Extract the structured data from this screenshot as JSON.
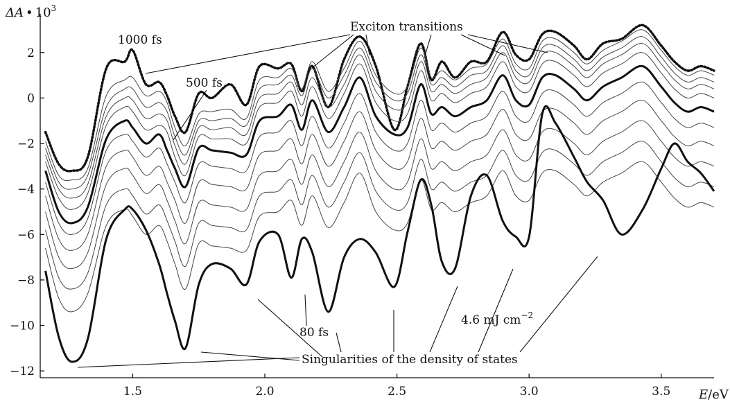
{
  "chart_data": {
    "type": "line",
    "ylabel": "ΔA • 10³",
    "ylabel_parts": {
      "symbol": "ΔA",
      "dot": "•",
      "base": "10",
      "exp": "3"
    },
    "xlabel": "E/eV",
    "xlabel_parts": {
      "symbol": "E",
      "unit": "/eV"
    },
    "xlim": [
      1.15,
      3.7
    ],
    "ylim": [
      -12.3,
      3.7
    ],
    "x_ticks": [
      {
        "value": 1.5,
        "label": "1.5"
      },
      {
        "value": 2.0,
        "label": "2.0"
      },
      {
        "value": 2.5,
        "label": "2.5"
      },
      {
        "value": 3.0,
        "label": "3.0"
      },
      {
        "value": 3.5,
        "label": "3.5"
      }
    ],
    "y_ticks": [
      {
        "value": 2,
        "label": "2"
      },
      {
        "value": 0,
        "label": "0"
      },
      {
        "value": -2,
        "label": "−2"
      },
      {
        "value": -4,
        "label": "−4"
      },
      {
        "value": -6,
        "label": "−6"
      },
      {
        "value": -8,
        "label": "−8"
      },
      {
        "value": -10,
        "label": "−10"
      },
      {
        "value": -12,
        "label": "−12"
      }
    ],
    "base_x": [
      1.17,
      1.22,
      1.27,
      1.33,
      1.4,
      1.47,
      1.5,
      1.55,
      1.6,
      1.63,
      1.66,
      1.7,
      1.75,
      1.8,
      1.87,
      1.93,
      1.98,
      2.05,
      2.1,
      2.14,
      2.18,
      2.24,
      2.3,
      2.36,
      2.42,
      2.49,
      2.54,
      2.59,
      2.63,
      2.67,
      2.72,
      2.78,
      2.84,
      2.9,
      2.95,
      3.0,
      3.05,
      3.1,
      3.17,
      3.22,
      3.28,
      3.35,
      3.43,
      3.5,
      3.55,
      3.6,
      3.65,
      3.7
    ],
    "series": [
      {
        "name": "1000 fs",
        "style": "dotted",
        "values": [
          -1.5,
          -2.9,
          -3.2,
          -2.6,
          1.3,
          1.6,
          2.1,
          0.6,
          0.7,
          0.1,
          -0.8,
          -1.5,
          0.2,
          0.0,
          0.6,
          -0.3,
          1.4,
          1.3,
          1.5,
          0.3,
          1.4,
          -0.4,
          1.7,
          2.7,
          1.4,
          -1.4,
          0.5,
          2.4,
          0.8,
          1.6,
          0.9,
          1.6,
          1.6,
          2.9,
          1.9,
          1.7,
          2.8,
          2.9,
          2.3,
          1.7,
          2.4,
          2.6,
          3.2,
          2.3,
          1.6,
          1.2,
          1.4,
          1.2
        ]
      },
      {
        "name": "",
        "style": "thin",
        "values": [
          -1.9,
          -3.4,
          -3.6,
          -3.1,
          0.1,
          0.8,
          0.9,
          0.1,
          0.3,
          -0.2,
          -1.3,
          -2.1,
          -0.7,
          -0.6,
          -0.5,
          -0.9,
          0.8,
          0.9,
          1.3,
          0.4,
          1.6,
          0.3,
          1.3,
          2.5,
          1.0,
          0.2,
          0.5,
          2.2,
          0.9,
          1.2,
          0.8,
          1.3,
          1.5,
          2.6,
          1.5,
          1.3,
          2.5,
          2.6,
          2.0,
          1.5,
          2.1,
          2.5,
          3.0,
          2.1,
          1.4,
          1.0,
          1.2,
          1.0
        ]
      },
      {
        "name": "",
        "style": "thin",
        "values": [
          -2.2,
          -3.7,
          -4.0,
          -3.4,
          -0.4,
          0.4,
          0.4,
          -0.4,
          -0.2,
          -0.6,
          -1.7,
          -2.5,
          -1.0,
          -1.0,
          -0.9,
          -1.2,
          0.4,
          0.6,
          1.0,
          0.1,
          1.3,
          0.0,
          1.0,
          2.2,
          0.7,
          -0.1,
          0.2,
          1.9,
          0.6,
          0.9,
          0.5,
          1.0,
          1.2,
          2.3,
          1.2,
          1.0,
          2.2,
          2.3,
          1.7,
          1.2,
          1.8,
          2.2,
          2.7,
          1.8,
          1.1,
          0.7,
          0.9,
          0.7
        ]
      },
      {
        "name": "",
        "style": "thin",
        "values": [
          -2.5,
          -4.0,
          -4.4,
          -3.8,
          -0.8,
          0.0,
          -0.1,
          -0.9,
          -0.7,
          -1.0,
          -2.1,
          -2.9,
          -1.3,
          -1.4,
          -1.3,
          -1.6,
          0.0,
          0.2,
          0.7,
          -0.3,
          0.9,
          -0.4,
          0.6,
          1.9,
          0.3,
          -0.5,
          -0.2,
          1.6,
          0.3,
          0.6,
          0.2,
          0.6,
          0.9,
          2.0,
          0.9,
          0.7,
          1.9,
          2.0,
          1.4,
          0.9,
          1.5,
          1.9,
          2.4,
          1.5,
          0.8,
          0.4,
          0.6,
          0.4
        ]
      },
      {
        "name": "",
        "style": "thin",
        "values": [
          -2.8,
          -4.4,
          -4.9,
          -4.2,
          -1.2,
          -0.4,
          -0.6,
          -1.4,
          -1.2,
          -1.5,
          -2.6,
          -3.4,
          -1.7,
          -1.8,
          -1.8,
          -2.0,
          -0.4,
          -0.2,
          0.3,
          -0.8,
          0.5,
          -0.9,
          0.2,
          1.5,
          -0.2,
          -1.0,
          -0.7,
          1.2,
          -0.1,
          0.2,
          -0.2,
          0.2,
          0.5,
          1.6,
          0.5,
          0.3,
          1.5,
          1.6,
          1.0,
          0.5,
          1.1,
          1.5,
          2.0,
          1.1,
          0.4,
          0.0,
          0.2,
          0.0
        ]
      },
      {
        "name": "500 fs",
        "style": "bold",
        "values": [
          -3.2,
          -5.0,
          -5.5,
          -4.8,
          -1.8,
          -1.0,
          -1.3,
          -2.0,
          -1.6,
          -2.3,
          -3.1,
          -3.9,
          -2.2,
          -2.3,
          -2.4,
          -2.5,
          -1.0,
          -0.8,
          -0.3,
          -1.4,
          -0.1,
          -1.5,
          -0.4,
          0.9,
          -0.8,
          -1.6,
          -1.3,
          0.6,
          -0.7,
          -0.4,
          -0.8,
          -0.4,
          -0.1,
          1.0,
          -0.1,
          -0.3,
          0.9,
          1.0,
          0.4,
          -0.1,
          0.5,
          0.9,
          1.4,
          0.5,
          -0.2,
          -0.6,
          -0.4,
          -0.6
        ]
      },
      {
        "name": "",
        "style": "thin",
        "values": [
          -3.7,
          -5.5,
          -6.0,
          -5.3,
          -2.3,
          -1.6,
          -1.9,
          -2.6,
          -2.2,
          -2.9,
          -3.7,
          -4.6,
          -2.9,
          -3.0,
          -3.1,
          -3.2,
          -1.7,
          -1.5,
          -1.0,
          -2.1,
          -0.8,
          -2.2,
          -1.1,
          0.2,
          -1.5,
          -2.3,
          -2.0,
          -0.1,
          -1.4,
          -1.1,
          -1.5,
          -1.1,
          -0.8,
          0.3,
          -0.8,
          -1.0,
          0.2,
          0.3,
          -0.3,
          -0.8,
          -0.2,
          0.2,
          0.7,
          -0.2,
          -0.9,
          -1.3,
          -1.1,
          -1.3
        ]
      },
      {
        "name": "",
        "style": "thin",
        "values": [
          -4.3,
          -6.2,
          -6.7,
          -6.0,
          -3.0,
          -2.3,
          -2.6,
          -3.4,
          -3.0,
          -3.7,
          -4.5,
          -5.5,
          -3.7,
          -3.8,
          -3.9,
          -4.0,
          -2.5,
          -2.3,
          -1.8,
          -2.9,
          -1.6,
          -3.0,
          -1.9,
          -0.6,
          -2.3,
          -3.1,
          -2.8,
          -0.9,
          -2.2,
          -1.9,
          -2.3,
          -1.9,
          -1.6,
          -0.5,
          -1.6,
          -1.8,
          -0.6,
          -0.5,
          -1.1,
          -1.6,
          -1.0,
          -0.6,
          -0.1,
          -1.0,
          -1.7,
          -2.1,
          -1.9,
          -2.1
        ]
      },
      {
        "name": "",
        "style": "thin",
        "values": [
          -5.0,
          -7.0,
          -7.5,
          -6.8,
          -3.8,
          -3.1,
          -3.4,
          -4.2,
          -3.8,
          -4.5,
          -5.4,
          -6.4,
          -4.6,
          -4.7,
          -4.8,
          -4.9,
          -3.4,
          -3.2,
          -2.7,
          -3.8,
          -2.5,
          -3.9,
          -2.8,
          -1.5,
          -3.2,
          -4.0,
          -3.7,
          -1.8,
          -3.1,
          -2.8,
          -3.2,
          -2.8,
          -2.5,
          -1.4,
          -2.5,
          -2.7,
          -1.5,
          -1.4,
          -2.0,
          -2.5,
          -1.9,
          -1.5,
          -1.0,
          -1.9,
          -2.6,
          -3.0,
          -2.8,
          -3.0
        ]
      },
      {
        "name": "",
        "style": "thin",
        "values": [
          -5.8,
          -7.9,
          -8.4,
          -7.7,
          -4.7,
          -4.0,
          -4.3,
          -5.1,
          -4.7,
          -5.4,
          -6.3,
          -7.4,
          -5.5,
          -5.6,
          -5.7,
          -5.8,
          -4.3,
          -4.1,
          -3.6,
          -4.7,
          -3.4,
          -4.8,
          -3.7,
          -2.4,
          -4.1,
          -4.9,
          -4.6,
          -2.7,
          -4.0,
          -3.7,
          -4.1,
          -3.7,
          -3.4,
          -2.3,
          -3.4,
          -3.6,
          -2.4,
          -2.3,
          -2.9,
          -3.4,
          -2.8,
          -2.4,
          -1.9,
          -2.8,
          -3.5,
          -3.9,
          -3.7,
          -3.9
        ]
      },
      {
        "name": "",
        "style": "thin",
        "values": [
          -6.6,
          -8.8,
          -9.4,
          -8.6,
          -5.6,
          -4.9,
          -5.2,
          -6.0,
          -5.6,
          -6.3,
          -7.3,
          -8.4,
          -6.4,
          -6.5,
          -6.6,
          -6.7,
          -5.2,
          -5.0,
          -4.5,
          -5.6,
          -4.3,
          -5.7,
          -4.6,
          -3.3,
          -5.0,
          -5.8,
          -5.5,
          -3.6,
          -4.9,
          -4.6,
          -5.0,
          -4.6,
          -4.3,
          -3.2,
          -4.3,
          -4.5,
          -3.3,
          -3.2,
          -3.8,
          -4.3,
          -3.7,
          -3.3,
          -2.8,
          -3.7,
          -4.4,
          -4.8,
          -4.6,
          -4.8
        ]
      },
      {
        "name": "80 fs",
        "style": "bold",
        "values": [
          -7.6,
          -10.5,
          -11.6,
          -10.6,
          -6.2,
          -4.9,
          -4.9,
          -5.8,
          -7.3,
          -8.6,
          -9.8,
          -11.0,
          -8.2,
          -7.3,
          -7.5,
          -8.2,
          -6.3,
          -6.0,
          -7.9,
          -6.2,
          -6.8,
          -9.4,
          -7.0,
          -6.2,
          -6.8,
          -8.3,
          -5.9,
          -3.6,
          -4.7,
          -7.2,
          -7.5,
          -4.3,
          -3.4,
          -5.4,
          -6.1,
          -6.1,
          -0.7,
          -1.1,
          -2.6,
          -3.7,
          -4.5,
          -6.0,
          -4.9,
          -3.1,
          -2.0,
          -2.8,
          -3.3,
          -4.1
        ]
      }
    ],
    "annotations": [
      {
        "label": "1000 fs",
        "x": 1.5,
        "y": 2.2
      },
      {
        "label": "500 fs",
        "x": 1.6,
        "y": -1.5
      },
      {
        "label": "Exciton transitions",
        "x": 2.35,
        "y": 3.0
      },
      {
        "label": "80 fs",
        "x": 2.17,
        "y": -9.1
      },
      {
        "label": "Singularities of the density of states",
        "x": 1.9,
        "y": -11.2
      },
      {
        "label": "4.6 mJ cm−2",
        "x": 2.92,
        "y": -9.4
      }
    ],
    "grid": false,
    "legend": "none"
  },
  "labels": {
    "ann_1000fs": "1000 fs",
    "ann_500fs": "500 fs",
    "ann_exciton": "Exciton transitions",
    "ann_80fs": "80 fs",
    "ann_singularities": "Singularities of the density of states",
    "ann_fluence_base": "4.6 mJ cm",
    "ann_fluence_exp": "−2"
  }
}
